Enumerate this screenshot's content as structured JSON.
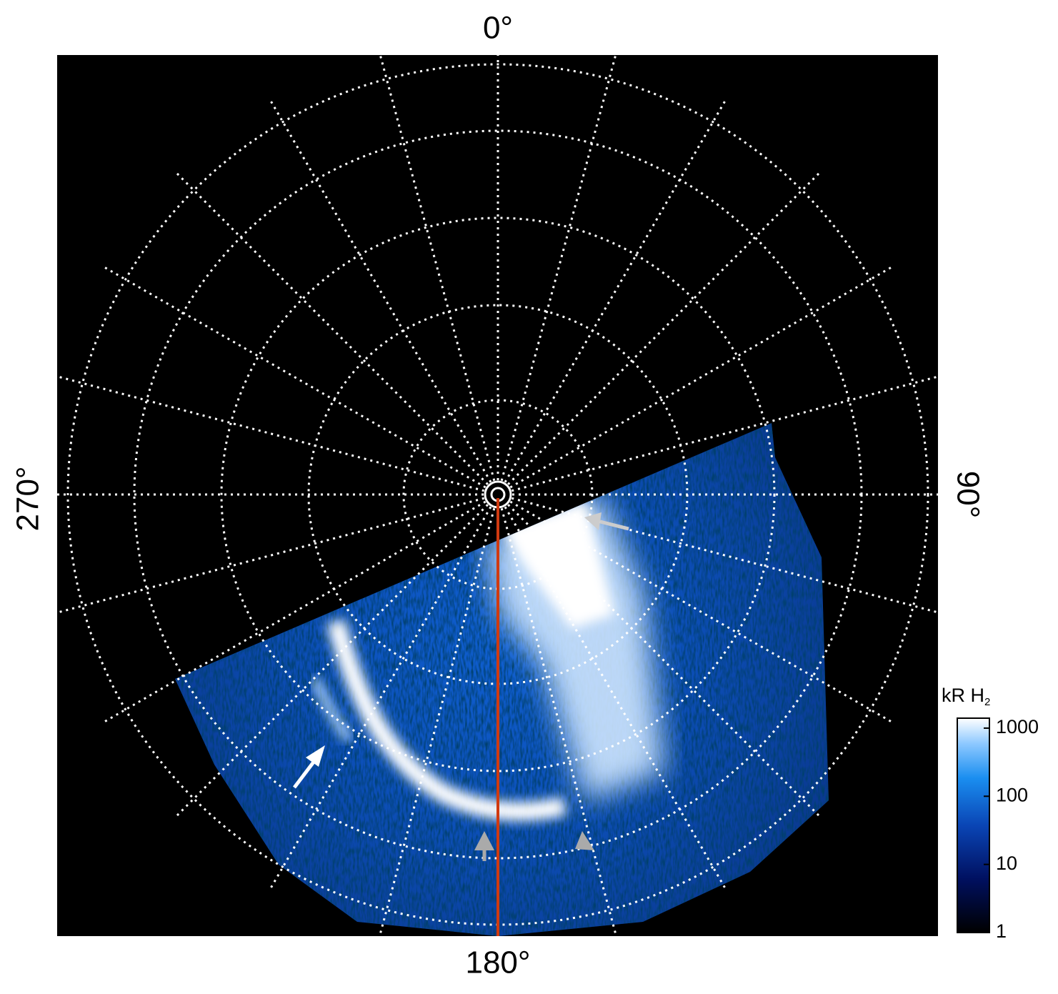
{
  "map": {
    "labels": {
      "top": "0°",
      "right": "90°",
      "bottom": "180°",
      "left": "270°"
    },
    "colorbar": {
      "title": "kR H",
      "title_sub": "2",
      "scale": "log",
      "lim": [
        1,
        1400
      ],
      "ticks": [
        1,
        10,
        100,
        1000
      ]
    }
  }
}
